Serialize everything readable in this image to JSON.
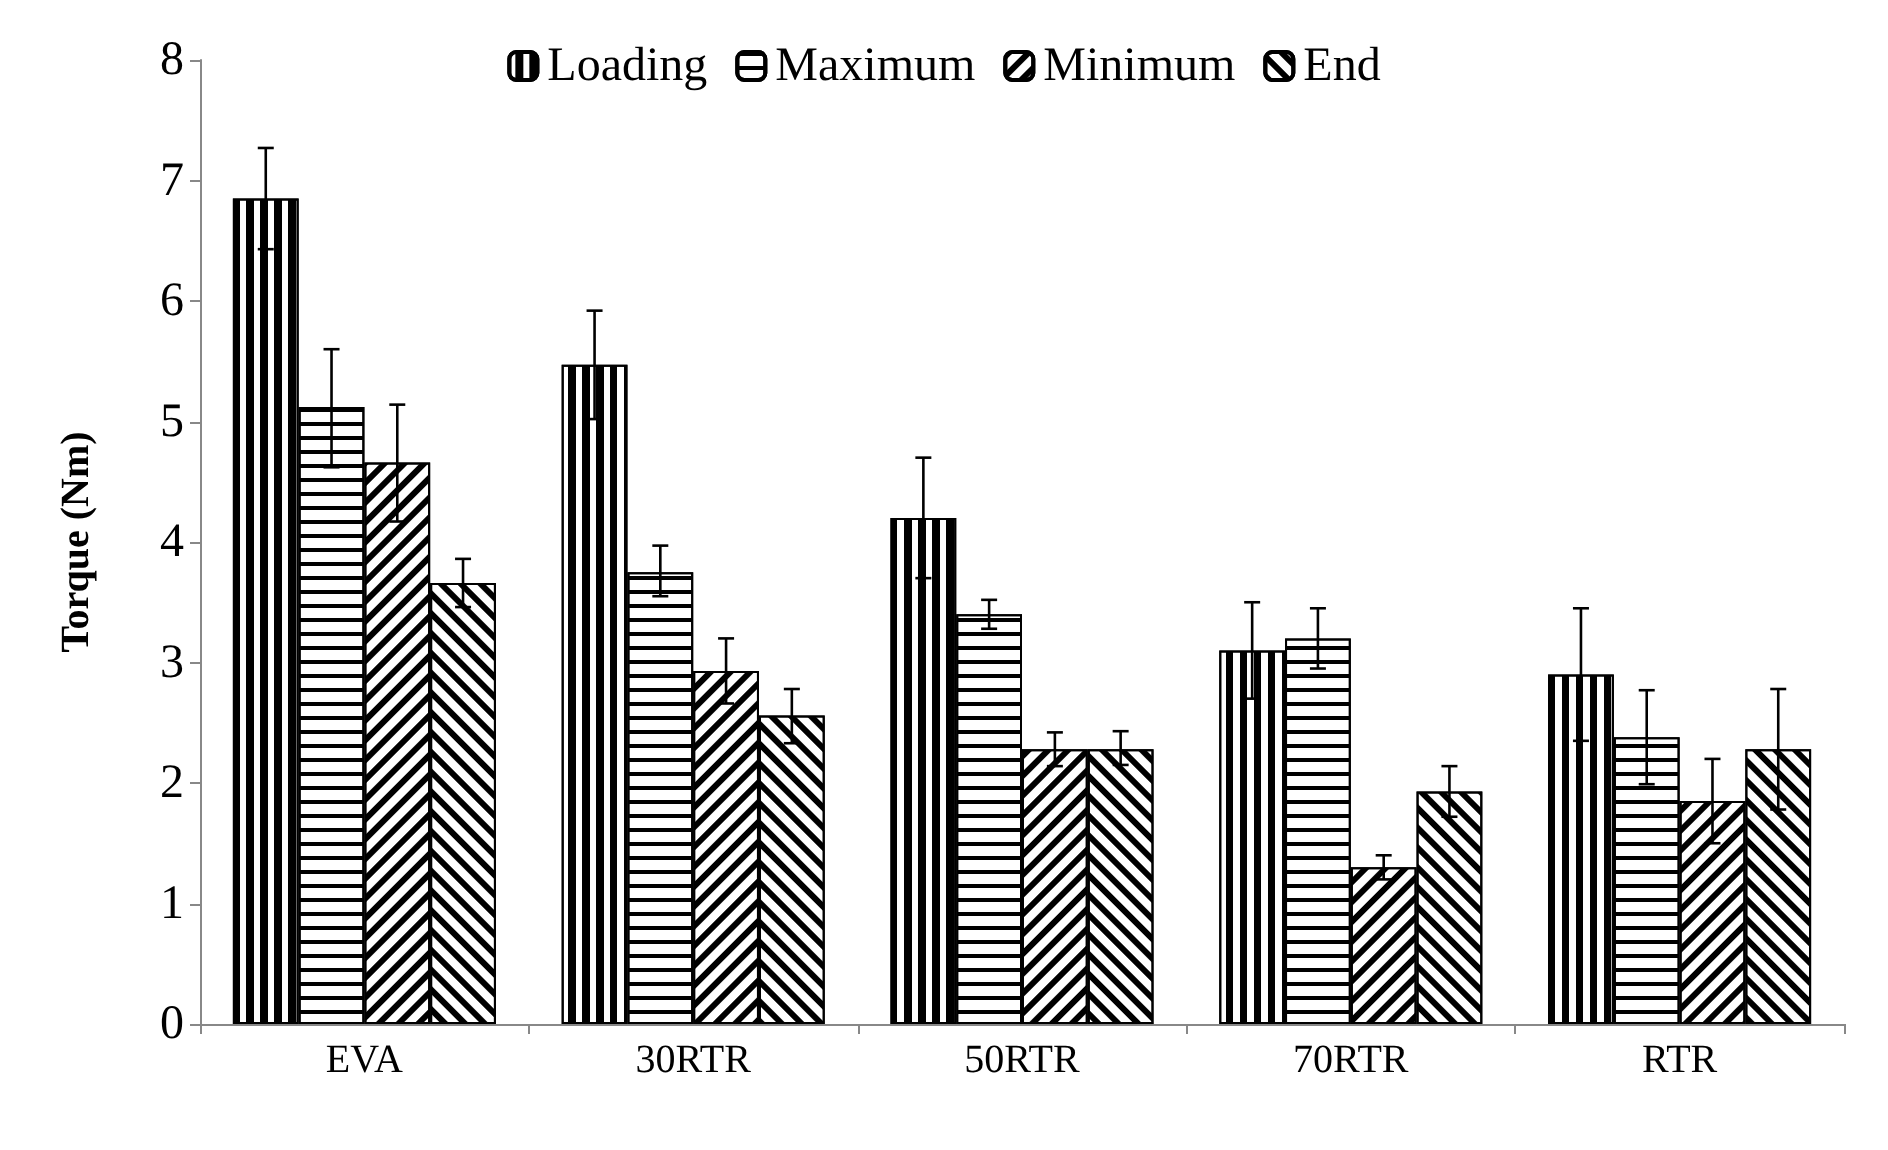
{
  "chart_data": {
    "type": "bar",
    "ylabel": "Torque (Nm)",
    "categories": [
      "EVA",
      "30RTR",
      "50RTR",
      "70RTR",
      "RTR"
    ],
    "series": [
      {
        "name": "Loading",
        "color": "#ffffff",
        "values": [
          6.85,
          5.47,
          4.2,
          3.1,
          2.9
        ],
        "errors": [
          [
            6.43,
            7.27
          ],
          [
            5.02,
            5.92
          ],
          [
            3.7,
            4.7
          ],
          [
            2.7,
            3.5
          ],
          [
            2.35,
            3.45
          ]
        ]
      },
      {
        "name": "Maximum",
        "color": "#ffffff",
        "values": [
          5.12,
          3.75,
          3.4,
          3.2,
          2.38
        ],
        "errors": [
          [
            4.62,
            5.6
          ],
          [
            3.55,
            3.97
          ],
          [
            3.28,
            3.52
          ],
          [
            2.95,
            3.45
          ],
          [
            1.99,
            2.77
          ]
        ]
      },
      {
        "name": "Minimum",
        "color": "#ffffff",
        "values": [
          4.66,
          2.93,
          2.28,
          1.3,
          1.85
        ],
        "errors": [
          [
            4.17,
            5.14
          ],
          [
            2.66,
            3.2
          ],
          [
            2.14,
            2.42
          ],
          [
            1.2,
            1.4
          ],
          [
            1.5,
            2.2
          ]
        ]
      },
      {
        "name": "End",
        "color": "#ffffff",
        "values": [
          3.66,
          2.56,
          2.28,
          1.93,
          2.28
        ],
        "errors": [
          [
            3.46,
            3.86
          ],
          [
            2.33,
            2.78
          ],
          [
            2.15,
            2.43
          ],
          [
            1.72,
            2.14
          ],
          [
            1.78,
            2.78
          ]
        ]
      }
    ],
    "ylim": [
      0,
      8
    ],
    "yticks": [
      0,
      1,
      2,
      3,
      4,
      5,
      6,
      7,
      8
    ],
    "grid": false,
    "legend": "top"
  }
}
